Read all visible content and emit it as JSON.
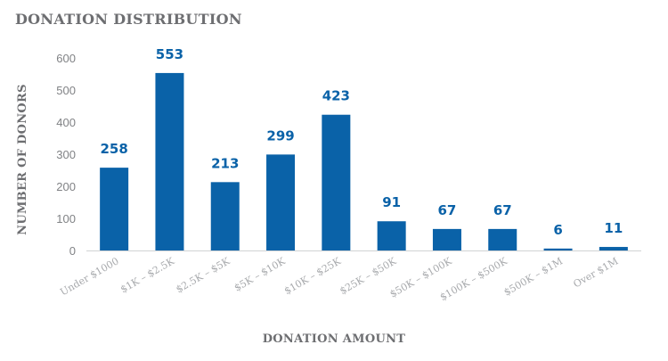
{
  "chart_data": {
    "type": "bar",
    "title": "DONATION DISTRIBUTION",
    "xlabel": "DONATION AMOUNT",
    "ylabel": "NUMBER OF DONORS",
    "categories": [
      "Under $1000",
      "$1K – $2.5K",
      "$2.5K – $5K",
      "$5K – $10K",
      "$10K – $25K",
      "$25K – $50K",
      "$50K – $100K",
      "$100K – $500K",
      "$500K – $1M",
      "Over $1M"
    ],
    "values": [
      258,
      553,
      213,
      299,
      423,
      91,
      67,
      67,
      6,
      11
    ],
    "ylim": [
      0,
      600
    ],
    "yticks": [
      "0",
      "100",
      "200",
      "300",
      "400",
      "500",
      "600"
    ],
    "grid": false,
    "legend": "none",
    "bar_color": "#0a62a8",
    "label_color": "#0a62a8"
  }
}
